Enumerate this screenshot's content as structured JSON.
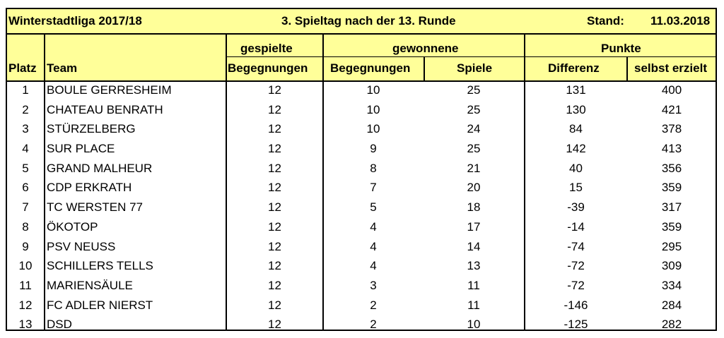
{
  "header": {
    "league": "Winterstadtliga 2017/18",
    "round": "3. Spieltag nach der 13. Runde",
    "stand_label": "Stand:",
    "date": "11.03.2018"
  },
  "columns": {
    "group_played": "gespielte",
    "group_won": "gewonnene",
    "group_points": "Punkte",
    "platz": "Platz",
    "team": "Team",
    "played_matches": "Begegnungen",
    "won_matches": "Begegnungen",
    "won_games": "Spiele",
    "diff": "Differenz",
    "scored": "selbst erzielt"
  },
  "rows": [
    {
      "platz": "1",
      "team": "BOULE GERRESHEIM",
      "played": "12",
      "won_matches": "10",
      "won_games": "25",
      "diff": "131",
      "scored": "400"
    },
    {
      "platz": "2",
      "team": "CHATEAU BENRATH",
      "played": "12",
      "won_matches": "10",
      "won_games": "25",
      "diff": "130",
      "scored": "421"
    },
    {
      "platz": "3",
      "team": "STÜRZELBERG",
      "played": "12",
      "won_matches": "10",
      "won_games": "24",
      "diff": "84",
      "scored": "378"
    },
    {
      "platz": "4",
      "team": "SUR PLACE",
      "played": "12",
      "won_matches": "9",
      "won_games": "25",
      "diff": "142",
      "scored": "413"
    },
    {
      "platz": "5",
      "team": "GRAND MALHEUR",
      "played": "12",
      "won_matches": "8",
      "won_games": "21",
      "diff": "40",
      "scored": "356"
    },
    {
      "platz": "6",
      "team": "CDP ERKRATH",
      "played": "12",
      "won_matches": "7",
      "won_games": "20",
      "diff": "15",
      "scored": "359"
    },
    {
      "platz": "7",
      "team": "TC WERSTEN 77",
      "played": "12",
      "won_matches": "5",
      "won_games": "18",
      "diff": "-39",
      "scored": "317"
    },
    {
      "platz": "8",
      "team": "ÖKOTOP",
      "played": "12",
      "won_matches": "4",
      "won_games": "17",
      "diff": "-14",
      "scored": "359"
    },
    {
      "platz": "9",
      "team": "PSV NEUSS",
      "played": "12",
      "won_matches": "4",
      "won_games": "14",
      "diff": "-74",
      "scored": "295"
    },
    {
      "platz": "10",
      "team": "SCHILLERS TELLS",
      "played": "12",
      "won_matches": "4",
      "won_games": "13",
      "diff": "-72",
      "scored": "309"
    },
    {
      "platz": "11",
      "team": "MARIENSÄULE",
      "played": "12",
      "won_matches": "3",
      "won_games": "11",
      "diff": "-72",
      "scored": "334"
    },
    {
      "platz": "12",
      "team": "FC ADLER NIERST",
      "played": "12",
      "won_matches": "2",
      "won_games": "11",
      "diff": "-146",
      "scored": "284"
    },
    {
      "platz": "13",
      "team": "DSD",
      "played": "12",
      "won_matches": "2",
      "won_games": "10",
      "diff": "-125",
      "scored": "282"
    }
  ],
  "colors": {
    "header_bg": "#ffff99",
    "border": "#000000"
  }
}
